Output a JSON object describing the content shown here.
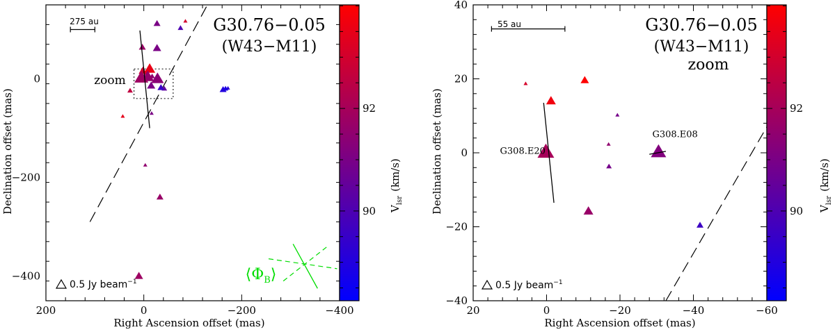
{
  "chart_data": [
    {
      "type": "scatter",
      "panel": "left",
      "title": "G30.76−0.05",
      "subtitle": "(W43−M11)",
      "xlabel": "Right Ascension offset (mas)",
      "ylabel": "Declination offset (mas)",
      "xlim": [
        200,
        -400
      ],
      "ylim": [
        -450,
        150
      ],
      "xticks": [
        200,
        0,
        -200,
        -400
      ],
      "xtick_labels": [
        "200",
        "0",
        "−200",
        "−400"
      ],
      "yticks": [
        -400,
        -200,
        0
      ],
      "ytick_labels": [
        "−400",
        "−200",
        "0"
      ],
      "scale_bar_label": "275 au",
      "beam_legend_text": "0.5 Jy beam",
      "beam_legend_sup": "−1",
      "zoom_label": "zoom",
      "phi_label": "Φ",
      "phi_sub": "B",
      "phi_color": "#00dd00",
      "colorbar": {
        "label": "V",
        "label_sub": "lsr",
        "label_unit": "(km/s)",
        "ticks": [
          92,
          90
        ],
        "tick_labels": [
          "92",
          "90"
        ],
        "vmin": 88.25,
        "vmax": 94.02,
        "color_low": "#0000ff",
        "color_high": "#ff0000"
      },
      "points": [
        {
          "x": 5,
          "y": 2,
          "v": 91.8,
          "s": 10
        },
        {
          "x": -8,
          "y": 4,
          "v": 91.6,
          "s": 9
        },
        {
          "x": -28,
          "y": 0,
          "v": 91.4,
          "s": 9
        },
        {
          "x": -12,
          "y": 20,
          "v": 93.5,
          "s": 8
        },
        {
          "x": 2,
          "y": 16,
          "v": 93.0,
          "s": 6
        },
        {
          "x": -5,
          "y": 12,
          "v": 92.8,
          "s": 4
        },
        {
          "x": -17,
          "y": 5,
          "v": 91.5,
          "s": 4
        },
        {
          "x": -15,
          "y": -14,
          "v": 91.0,
          "s": 6
        },
        {
          "x": -35,
          "y": -18,
          "v": 89.5,
          "s": 5
        },
        {
          "x": -42,
          "y": -20,
          "v": 90.5,
          "s": 4
        },
        {
          "x": -27,
          "y": 62,
          "v": 91.0,
          "s": 6
        },
        {
          "x": 3,
          "y": 64,
          "v": 91.7,
          "s": 5
        },
        {
          "x": -27,
          "y": 112,
          "v": 91.0,
          "s": 5
        },
        {
          "x": -75,
          "y": 103,
          "v": 90.0,
          "s": 4
        },
        {
          "x": -85,
          "y": 117,
          "v": 93.0,
          "s": 3
        },
        {
          "x": 28,
          "y": -24,
          "v": 92.6,
          "s": 4
        },
        {
          "x": 43,
          "y": -76,
          "v": 93.4,
          "s": 3
        },
        {
          "x": -16,
          "y": -70,
          "v": 91.0,
          "s": 3
        },
        {
          "x": -162,
          "y": -22,
          "v": 89.0,
          "s": 5
        },
        {
          "x": -167,
          "y": -20,
          "v": 88.8,
          "s": 4
        },
        {
          "x": -172,
          "y": -19,
          "v": 89.2,
          "s": 3
        },
        {
          "x": -3,
          "y": -175,
          "v": 91.5,
          "s": 3
        },
        {
          "x": -33,
          "y": -240,
          "v": 91.7,
          "s": 5
        },
        {
          "x": 10,
          "y": -400,
          "v": 91.8,
          "s": 6
        }
      ],
      "zoom_box": {
        "x1": 20,
        "x2": -60,
        "y1": 20,
        "y2": -40
      },
      "solid_line": {
        "x1": 8,
        "y1": 98,
        "x2": -12,
        "y2": -100
      },
      "dashed_line": {
        "x1": 110,
        "y1": -290,
        "x2": -130,
        "y2": 150
      },
      "scale_bar": {
        "x1": 150,
        "x2": 100,
        "y": 100
      },
      "phi_lines": {
        "solid": {
          "x1": -305,
          "y1": -335,
          "x2": -355,
          "y2": -425
        },
        "dashed": [
          {
            "x1": -255,
            "y1": -365,
            "x2": -395,
            "y2": -385
          },
          {
            "x1": -285,
            "y1": -410,
            "x2": -375,
            "y2": -340
          }
        ]
      }
    },
    {
      "type": "scatter",
      "panel": "right",
      "title": "G30.76−0.05",
      "subtitle": "(W43−M11)",
      "subtitle2": "zoom",
      "xlabel": "Right Ascension offset (mas)",
      "ylabel": "Declination offset (mas)",
      "xlim": [
        20,
        -60
      ],
      "ylim": [
        -40,
        40
      ],
      "xticks": [
        20,
        0,
        -20,
        -40,
        -60
      ],
      "xtick_labels": [
        "20",
        "0",
        "−20",
        "−40",
        "−60"
      ],
      "yticks": [
        -40,
        -20,
        0,
        20,
        40
      ],
      "ytick_labels": [
        "−40",
        "−20",
        "0",
        "20",
        "40"
      ],
      "scale_bar_label": "55 au",
      "beam_legend_text": "0.5 Jy beam",
      "beam_legend_sup": "−1",
      "annotations": [
        {
          "text": "G308.E20",
          "x": 6.5,
          "y": -0.3
        },
        {
          "text": "G308.E08",
          "x": -35,
          "y": 4.2
        }
      ],
      "colorbar": {
        "label": "V",
        "label_sub": "lsr",
        "label_unit": "(km/s)",
        "ticks": [
          92,
          90
        ],
        "tick_labels": [
          "92",
          "90"
        ],
        "vmin": 88.25,
        "vmax": 94.02,
        "color_low": "#0000ff",
        "color_high": "#ff0000"
      },
      "points": [
        {
          "x": 0.2,
          "y": 0.2,
          "v": 92.0,
          "s": 12
        },
        {
          "x": -30.5,
          "y": 0.2,
          "v": 91.2,
          "s": 11
        },
        {
          "x": -1.2,
          "y": 14.0,
          "v": 93.7,
          "s": 7
        },
        {
          "x": -10.4,
          "y": 19.6,
          "v": 94.0,
          "s": 6
        },
        {
          "x": 5.7,
          "y": 18.7,
          "v": 93.1,
          "s": 3
        },
        {
          "x": -11.4,
          "y": -15.8,
          "v": 91.7,
          "s": 7
        },
        {
          "x": -16.9,
          "y": 2.3,
          "v": 91.5,
          "s": 3
        },
        {
          "x": -17.0,
          "y": -3.7,
          "v": 90.9,
          "s": 4
        },
        {
          "x": -19.3,
          "y": 10.2,
          "v": 90.9,
          "s": 3
        },
        {
          "x": -41.8,
          "y": -19.6,
          "v": 89.6,
          "s": 5
        }
      ],
      "solid_line": {
        "x1": 0.8,
        "y1": 13.5,
        "x2": -2.0,
        "y2": -13.5
      },
      "segment_line": {
        "x1": -28.0,
        "y1": -0.4,
        "x2": -32.5,
        "y2": 0.4
      },
      "dashed_line": {
        "x1": -32.5,
        "y1": -40,
        "x2": -60,
        "y2": 7
      },
      "scale_bar": {
        "x1": 15.0,
        "x2": -5.0,
        "y": 33.5
      }
    }
  ]
}
